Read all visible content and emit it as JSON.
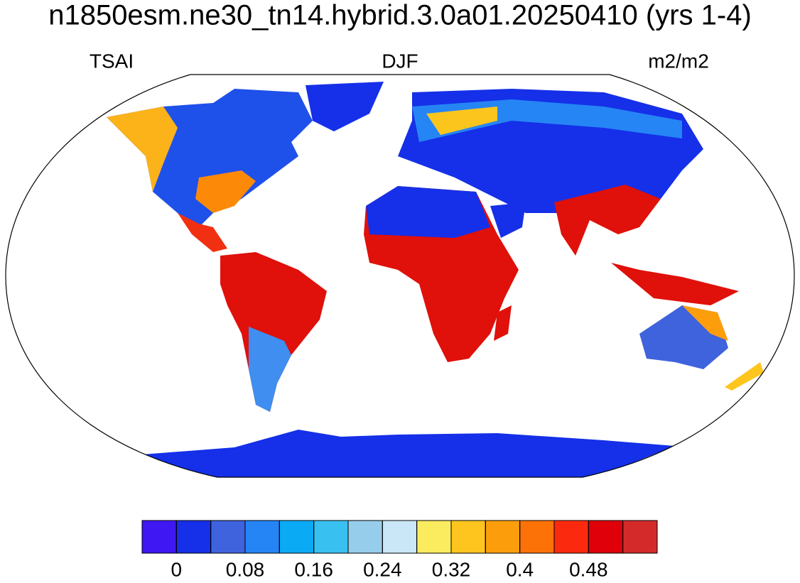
{
  "title": "n1850esm.ne30_tn14.hybrid.3.0a01.20250410 (yrs 1-4)",
  "left_string": "TSAI",
  "center_string": "DJF",
  "right_string": "m2/m2",
  "colorbar": {
    "colors": [
      "#3f17f2",
      "#1530e8",
      "#3f62dd",
      "#2585f5",
      "#0aaaf5",
      "#38c1f0",
      "#96cdeb",
      "#c9e7f6",
      "#fbeb5f",
      "#fdc51e",
      "#fc9e0c",
      "#fc7206",
      "#fb2a0f",
      "#e0000a",
      "#d42a2a"
    ],
    "levels": [
      0,
      0.04,
      0.08,
      0.12,
      0.16,
      0.2,
      0.24,
      0.28,
      0.32,
      0.36,
      0.4,
      0.44,
      0.48,
      0.52
    ],
    "ticks": [
      0,
      0.08,
      0.16,
      0.24,
      0.32,
      0.4,
      0.48
    ]
  }
}
